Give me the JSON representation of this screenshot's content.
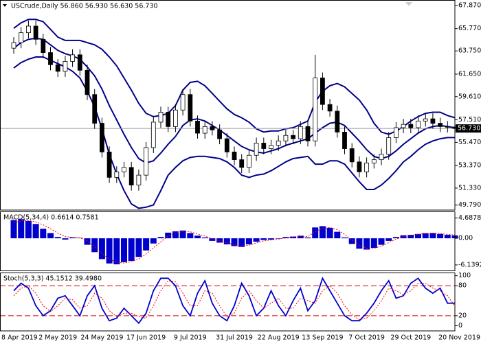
{
  "chart_data": [
    {
      "type": "candlestick",
      "title": "USCrude,Daily  56.860 56.930 56.630 56.730",
      "categories": [
        "8 Apr 2019",
        null,
        null,
        null,
        null,
        null,
        "2 May 2019",
        null,
        null,
        null,
        null,
        null,
        "24 May 2019",
        null,
        null,
        null,
        null,
        null,
        "17 Jun 2019",
        null,
        null,
        null,
        null,
        null,
        "9 Jul 2019",
        null,
        null,
        null,
        null,
        null,
        "31 Jul 2019",
        null,
        null,
        null,
        null,
        null,
        "22 Aug 2019",
        null,
        null,
        null,
        null,
        null,
        "13 Sep 2019",
        null,
        null,
        null,
        null,
        null,
        "7 Oct 2019",
        null,
        null,
        null,
        null,
        null,
        "29 Oct 2019",
        null,
        null,
        null,
        null,
        null,
        "20 Nov 2019"
      ],
      "open": [
        64.0,
        64.5,
        65.4,
        66.0,
        64.8,
        63.6,
        62.5,
        61.9,
        62.8,
        63.4,
        62.0,
        59.8,
        57.2,
        54.6,
        52.3,
        52.8,
        53.2,
        51.6,
        52.5,
        55.0,
        57.3,
        58.2,
        56.9,
        58.4,
        59.8,
        57.4,
        56.3,
        56.9,
        56.6,
        55.8,
        54.6,
        53.9,
        53.2,
        54.3,
        55.4,
        54.9,
        55.2,
        55.6,
        56.1,
        55.8,
        56.9,
        55.6,
        61.3,
        58.9,
        58.3,
        56.4,
        54.9,
        53.7,
        52.8,
        53.6,
        53.9,
        54.4,
        55.9,
        56.8,
        57.1,
        56.8,
        57.4,
        57.6,
        57.2,
        56.9,
        56.86
      ],
      "high": [
        65.0,
        65.9,
        66.5,
        66.5,
        65.3,
        64.1,
        63.0,
        63.3,
        63.9,
        63.9,
        62.5,
        60.3,
        57.7,
        55.1,
        53.3,
        53.7,
        53.7,
        53.0,
        55.5,
        57.8,
        58.7,
        58.7,
        58.9,
        60.3,
        60.3,
        57.9,
        57.4,
        57.4,
        57.1,
        56.3,
        55.1,
        54.4,
        54.8,
        55.9,
        55.9,
        55.7,
        56.1,
        56.6,
        56.6,
        57.4,
        57.4,
        63.4,
        61.8,
        59.4,
        58.8,
        56.9,
        55.4,
        54.2,
        54.1,
        54.4,
        54.9,
        56.4,
        57.3,
        57.6,
        57.6,
        57.9,
        58.1,
        58.1,
        57.7,
        57.4,
        56.93
      ],
      "low": [
        63.5,
        64.0,
        64.9,
        64.3,
        63.1,
        62.0,
        61.4,
        61.4,
        62.3,
        61.5,
        59.3,
        56.7,
        54.1,
        51.8,
        51.8,
        52.3,
        51.1,
        51.1,
        52.0,
        54.5,
        56.8,
        56.4,
        56.4,
        57.9,
        56.9,
        55.8,
        55.8,
        56.1,
        55.3,
        54.1,
        53.4,
        52.7,
        52.7,
        53.8,
        54.4,
        54.4,
        54.7,
        55.1,
        55.3,
        55.3,
        55.1,
        55.1,
        58.4,
        57.8,
        55.9,
        54.4,
        53.2,
        52.3,
        52.3,
        53.1,
        53.4,
        53.9,
        55.4,
        56.3,
        56.3,
        56.3,
        56.9,
        56.7,
        56.4,
        56.36,
        56.63
      ],
      "close": [
        64.5,
        65.4,
        66.0,
        64.8,
        63.6,
        62.5,
        61.9,
        62.8,
        63.4,
        62.0,
        59.8,
        57.2,
        54.6,
        52.3,
        52.8,
        53.2,
        51.6,
        52.5,
        55.0,
        57.3,
        58.2,
        56.9,
        58.4,
        59.8,
        57.4,
        56.3,
        56.9,
        56.6,
        55.8,
        54.6,
        53.9,
        53.2,
        54.3,
        55.4,
        54.9,
        55.2,
        55.6,
        56.1,
        55.8,
        56.9,
        55.6,
        61.3,
        58.9,
        58.3,
        56.4,
        54.9,
        53.7,
        52.8,
        53.6,
        53.9,
        54.4,
        55.9,
        56.8,
        57.1,
        56.8,
        57.4,
        57.6,
        57.2,
        56.9,
        56.86,
        56.73
      ],
      "bands": [
        {
          "color": "#00008b",
          "values": [
            65.8,
            66.3,
            66.6,
            66.6,
            66.4,
            65.7,
            65.0,
            64.7,
            64.7,
            64.7,
            64.5,
            64.3,
            63.9,
            63.2,
            62.4,
            61.3,
            60.2,
            59.0,
            58.1,
            57.8,
            57.9,
            58.1,
            58.8,
            60.2,
            60.9,
            61.0,
            60.6,
            59.9,
            59.2,
            58.5,
            58.0,
            57.7,
            57.3,
            56.7,
            56.4,
            56.5,
            56.5,
            56.7,
            56.8,
            57.1,
            57.4,
            59.1,
            60.1,
            60.6,
            60.8,
            60.5,
            59.9,
            59.3,
            58.4,
            57.2,
            56.4,
            56.2,
            56.5,
            56.9,
            57.4,
            57.8,
            58.1,
            58.2,
            58.2,
            57.9,
            57.7
          ]
        },
        {
          "color": "#00008b",
          "values": [
            64.0,
            64.5,
            64.8,
            64.9,
            64.8,
            64.3,
            63.8,
            63.5,
            63.3,
            63.0,
            62.3,
            61.5,
            60.3,
            58.8,
            57.5,
            56.2,
            55.0,
            54.0,
            53.6,
            53.8,
            54.5,
            55.3,
            56.0,
            57.0,
            57.5,
            57.6,
            57.4,
            57.0,
            56.6,
            56.1,
            55.6,
            55.1,
            54.8,
            54.6,
            54.5,
            54.7,
            54.9,
            55.2,
            55.4,
            55.6,
            55.8,
            56.3,
            56.8,
            57.2,
            57.3,
            57.0,
            56.3,
            55.6,
            54.8,
            54.2,
            54.0,
            54.2,
            54.7,
            55.3,
            55.8,
            56.3,
            56.7,
            56.9,
            57.0,
            56.9,
            56.8
          ]
        },
        {
          "color": "#00008b",
          "values": [
            62.2,
            62.7,
            63.0,
            63.2,
            63.2,
            62.9,
            62.6,
            62.3,
            61.9,
            61.3,
            60.1,
            58.7,
            56.7,
            54.4,
            52.6,
            51.1,
            49.9,
            49.5,
            49.6,
            49.8,
            51.1,
            52.5,
            53.2,
            53.8,
            54.1,
            54.2,
            54.2,
            54.1,
            54.0,
            53.7,
            53.2,
            52.5,
            52.3,
            52.5,
            52.6,
            52.9,
            53.3,
            53.7,
            54.0,
            54.1,
            54.2,
            53.5,
            53.5,
            53.8,
            53.8,
            53.5,
            52.7,
            51.9,
            51.2,
            51.2,
            51.6,
            52.2,
            52.9,
            53.7,
            54.2,
            54.8,
            55.3,
            55.6,
            55.8,
            55.9,
            55.9
          ]
        }
      ],
      "last_price": {
        "value": 56.73,
        "label": "56.730"
      },
      "ylim": [
        49.4,
        68.3
      ],
      "yticks": [
        {
          "value": 67.87,
          "label": "67.870"
        },
        {
          "value": 65.77,
          "label": "65.770"
        },
        {
          "value": 63.75,
          "label": "63.750"
        },
        {
          "value": 61.65,
          "label": "61.650"
        },
        {
          "value": 59.61,
          "label": "59.610"
        },
        {
          "value": 57.51,
          "label": "57.510"
        },
        {
          "value": 55.47,
          "label": "55.470"
        },
        {
          "value": 53.37,
          "label": "53.370"
        },
        {
          "value": 51.33,
          "label": "51.330"
        },
        {
          "value": 49.79,
          "label": "49.790"
        }
      ]
    },
    {
      "type": "bar",
      "title": "MACD(5,34,4) 0.6614 0.7581",
      "color": "#0000cd",
      "signal_color": "#ff0000",
      "values": [
        4.2,
        4.4,
        4.0,
        3.3,
        2.2,
        1.2,
        0.3,
        -0.3,
        0.2,
        0.1,
        -1.5,
        -3.2,
        -4.8,
        -5.8,
        -6.0,
        -5.5,
        -5.2,
        -4.3,
        -2.8,
        -1.2,
        0.3,
        1.3,
        1.6,
        1.8,
        1.2,
        0.6,
        0.2,
        -0.6,
        -1.0,
        -1.4,
        -1.8,
        -2.0,
        -1.4,
        -0.8,
        -0.4,
        -0.3,
        -0.1,
        0.3,
        0.4,
        0.6,
        0.2,
        2.5,
        2.8,
        2.4,
        1.5,
        0.2,
        -1.3,
        -2.4,
        -2.6,
        -2.2,
        -1.5,
        -0.6,
        0.3,
        0.7,
        0.8,
        1.0,
        1.2,
        1.2,
        1.0,
        0.8,
        0.6614
      ],
      "signal": [
        3.6,
        4.0,
        4.1,
        3.8,
        3.1,
        2.2,
        1.2,
        0.4,
        0.2,
        0.1,
        -0.6,
        -2.0,
        -3.5,
        -4.8,
        -5.5,
        -5.7,
        -5.4,
        -4.8,
        -3.6,
        -2.2,
        -0.8,
        0.5,
        1.2,
        1.6,
        1.5,
        1.0,
        0.5,
        -0.1,
        -0.6,
        -1.0,
        -1.5,
        -1.8,
        -1.6,
        -1.1,
        -0.6,
        -0.4,
        -0.2,
        0.1,
        0.3,
        0.5,
        0.4,
        1.5,
        2.3,
        2.5,
        2.0,
        0.9,
        -0.4,
        -1.6,
        -2.3,
        -2.3,
        -1.8,
        -1.0,
        -0.2,
        0.4,
        0.7,
        0.9,
        1.1,
        1.2,
        1.1,
        0.9,
        0.7581
      ],
      "ylim": [
        -7.42,
        6.03
      ],
      "yticks": [
        4.6878,
        {
          "value": 0,
          "label": "0.00"
        },
        -6.1392
      ]
    },
    {
      "type": "line",
      "title": "Stoch(5,3,3) 45.1512 39.4980",
      "series": [
        {
          "color": "#0000cd",
          "values": [
            70,
            85,
            75,
            40,
            20,
            30,
            55,
            60,
            40,
            20,
            60,
            80,
            35,
            10,
            15,
            35,
            20,
            5,
            25,
            70,
            95,
            95,
            80,
            40,
            20,
            65,
            90,
            45,
            20,
            10,
            40,
            85,
            60,
            20,
            35,
            70,
            40,
            20,
            50,
            75,
            30,
            50,
            95,
            70,
            45,
            20,
            10,
            10,
            25,
            45,
            70,
            90,
            55,
            60,
            85,
            95,
            75,
            65,
            75,
            45,
            45.1512
          ]
        },
        {
          "color": "#ff0000",
          "values": [
            60,
            75,
            80,
            65,
            40,
            28,
            40,
            55,
            52,
            35,
            40,
            65,
            55,
            30,
            18,
            25,
            25,
            18,
            15,
            40,
            70,
            90,
            88,
            65,
            40,
            40,
            70,
            65,
            40,
            18,
            25,
            55,
            70,
            50,
            35,
            45,
            55,
            35,
            35,
            55,
            50,
            45,
            70,
            80,
            65,
            40,
            22,
            12,
            15,
            30,
            50,
            75,
            70,
            62,
            70,
            85,
            85,
            75,
            70,
            60,
            39.498
          ]
        }
      ],
      "levels": [
        80,
        20
      ],
      "level_color": "#cc0000",
      "ylim": [
        -9,
        105
      ],
      "yticks": [
        100,
        80,
        20,
        0
      ]
    }
  ]
}
